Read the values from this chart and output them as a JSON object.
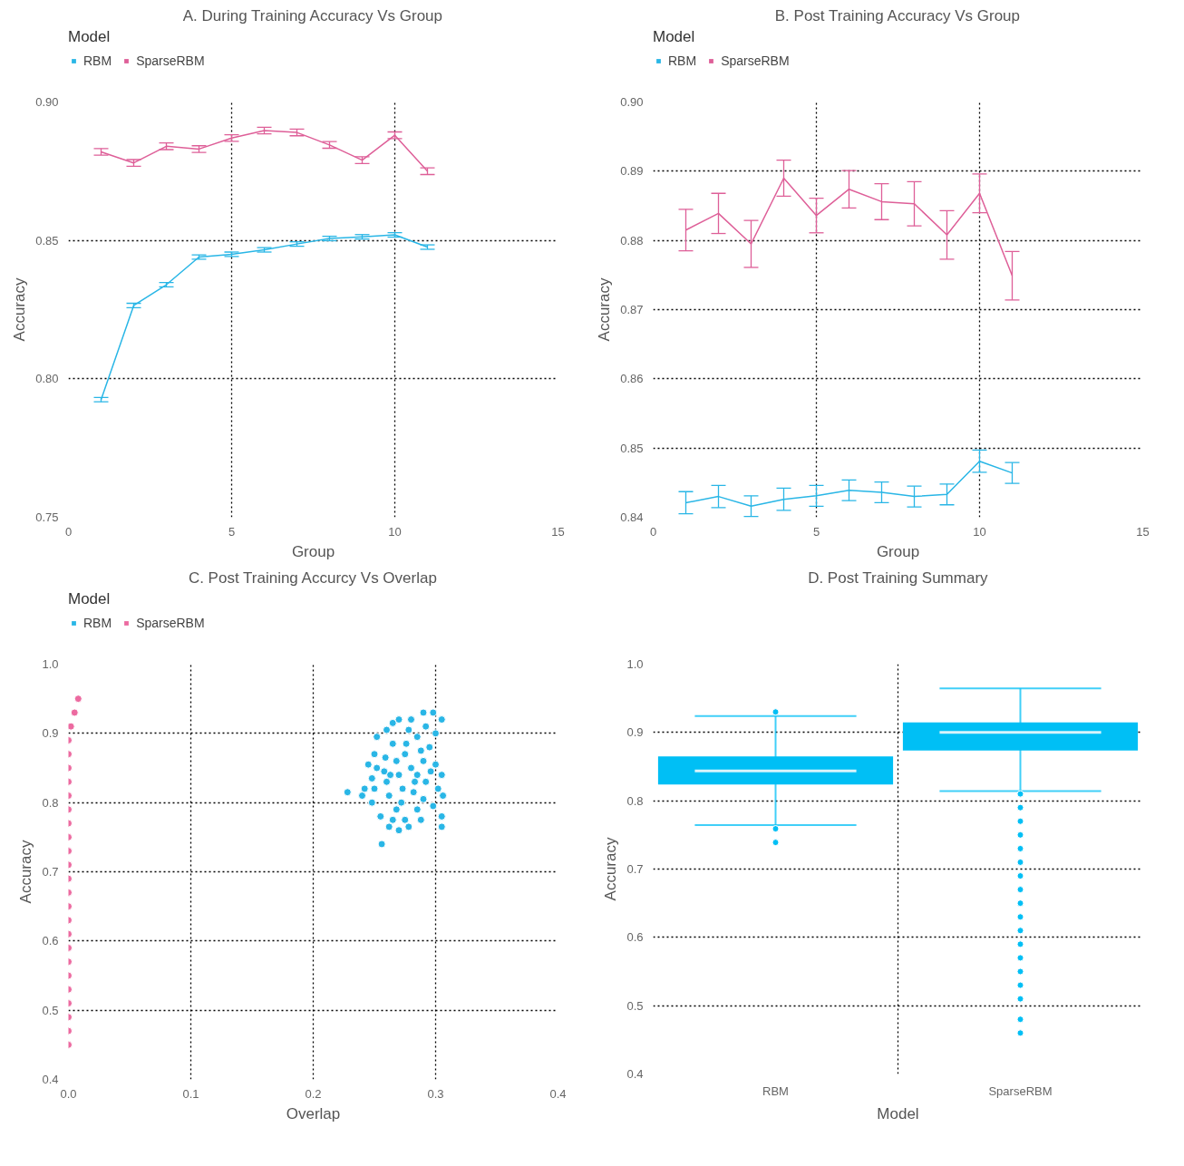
{
  "chart_data": [
    {
      "type": "line",
      "title": "A. During Training Accuracy Vs Group",
      "xlabel": "Group",
      "ylabel": "Accuracy",
      "legend_title": "Model",
      "legend": "top left",
      "grid": true,
      "x": [
        1,
        2,
        3,
        4,
        5,
        6,
        7,
        8,
        9,
        10,
        11
      ],
      "xlim": [
        0,
        15
      ],
      "xticks": [
        0,
        5,
        10,
        15
      ],
      "ylim": [
        0.75,
        0.9
      ],
      "yticks": [
        0.75,
        {
          "value": 0.8,
          "label": "0.80"
        },
        0.85,
        {
          "value": 0.9,
          "label": "0.90"
        }
      ],
      "series": [
        {
          "name": "RBM",
          "color": "#29b6e6",
          "values": [
            0.7925,
            0.8265,
            0.834,
            0.844,
            0.845,
            0.8466,
            0.8487,
            0.8507,
            0.8513,
            0.852,
            0.8476
          ],
          "errors": [
            0.0008,
            0.0008,
            0.0008,
            0.0008,
            0.0008,
            0.0008,
            0.0008,
            0.0008,
            0.0008,
            0.0008,
            0.0008
          ]
        },
        {
          "name": "SparseRBM",
          "color": "#de5f98",
          "values": [
            0.882,
            0.878,
            0.884,
            0.883,
            0.887,
            0.8897,
            0.889,
            0.8845,
            0.879,
            0.888,
            0.875
          ],
          "errors": [
            0.0012,
            0.0012,
            0.0012,
            0.0012,
            0.0012,
            0.0012,
            0.0012,
            0.0012,
            0.0012,
            0.0012,
            0.0012
          ]
        }
      ]
    },
    {
      "type": "line",
      "title": "B. Post Training Accuracy Vs Group",
      "xlabel": "Group",
      "ylabel": "Accuracy",
      "legend_title": "Model",
      "legend": "top left",
      "grid": true,
      "x": [
        1,
        2,
        3,
        4,
        5,
        6,
        7,
        8,
        9,
        10,
        11
      ],
      "xlim": [
        0,
        15
      ],
      "xticks": [
        0,
        5,
        10,
        15
      ],
      "ylim": [
        0.84,
        0.9
      ],
      "yticks": [
        0.84,
        0.85,
        0.86,
        0.87,
        0.88,
        0.89,
        {
          "value": 0.9,
          "label": "0.90"
        }
      ],
      "series": [
        {
          "name": "RBM",
          "color": "#29b6e6",
          "values": [
            0.8421,
            0.843,
            0.8416,
            0.8426,
            0.8431,
            0.8439,
            0.8436,
            0.843,
            0.8433,
            0.8481,
            0.8464
          ],
          "errors": [
            0.0016,
            0.0016,
            0.0015,
            0.0016,
            0.0015,
            0.0015,
            0.0015,
            0.0015,
            0.0015,
            0.0016,
            0.0015
          ]
        },
        {
          "name": "SparseRBM",
          "color": "#de5f98",
          "values": [
            0.8815,
            0.8839,
            0.8795,
            0.889,
            0.8836,
            0.8874,
            0.8856,
            0.8853,
            0.8808,
            0.8868,
            0.8749
          ],
          "errors": [
            0.003,
            0.0029,
            0.0034,
            0.0026,
            0.0025,
            0.0027,
            0.0026,
            0.0032,
            0.0035,
            0.0028,
            0.0035
          ]
        }
      ]
    },
    {
      "type": "scatter",
      "title": "C. Post Training Accurcy Vs Overlap",
      "xlabel": "Overlap",
      "ylabel": "Accuracy",
      "legend_title": "Model",
      "legend": "top left",
      "grid": true,
      "marker": "circle",
      "xlim": [
        0,
        0.4
      ],
      "xticks": [
        {
          "value": 0,
          "label": "0.0"
        },
        0.1,
        0.2,
        0.3,
        0.4
      ],
      "ylim": [
        0.4,
        1.0
      ],
      "yticks": [
        0.4,
        0.5,
        0.6,
        0.7,
        0.8,
        0.9,
        {
          "value": 1,
          "label": "1.0"
        }
      ],
      "series": [
        {
          "name": "RBM",
          "color": "#29b6e6",
          "x": [
            0.228,
            0.256,
            0.305,
            0.306,
            0.305,
            0.245,
            0.25,
            0.252,
            0.26,
            0.265,
            0.27,
            0.28,
            0.29,
            0.298,
            0.305,
            0.3,
            0.295,
            0.3,
            0.305,
            0.302,
            0.29,
            0.285,
            0.275,
            0.265,
            0.255,
            0.248,
            0.242,
            0.24,
            0.25,
            0.26,
            0.27,
            0.28,
            0.29,
            0.275,
            0.265,
            0.285,
            0.278,
            0.268,
            0.258,
            0.248,
            0.262,
            0.272,
            0.282,
            0.292,
            0.296,
            0.288,
            0.276,
            0.259,
            0.252,
            0.268,
            0.278,
            0.288,
            0.298,
            0.262,
            0.27,
            0.283,
            0.273,
            0.263,
            0.292,
            0.285
          ],
          "values": [
            0.815,
            0.74,
            0.765,
            0.81,
            0.78,
            0.855,
            0.87,
            0.895,
            0.905,
            0.915,
            0.92,
            0.92,
            0.93,
            0.93,
            0.92,
            0.9,
            0.88,
            0.855,
            0.84,
            0.82,
            0.805,
            0.79,
            0.775,
            0.775,
            0.78,
            0.8,
            0.82,
            0.81,
            0.82,
            0.83,
            0.84,
            0.85,
            0.86,
            0.87,
            0.885,
            0.895,
            0.905,
            0.86,
            0.845,
            0.835,
            0.81,
            0.8,
            0.815,
            0.83,
            0.845,
            0.875,
            0.885,
            0.865,
            0.85,
            0.79,
            0.765,
            0.775,
            0.795,
            0.765,
            0.76,
            0.83,
            0.82,
            0.84,
            0.91,
            0.84
          ]
        },
        {
          "name": "SparseRBM",
          "color": "#ec6aa0",
          "x": [
            0,
            0,
            0,
            0,
            0,
            0,
            0,
            0,
            0,
            0,
            0,
            0,
            0,
            0,
            0,
            0,
            0,
            0,
            0,
            0,
            0,
            0,
            0,
            0.002,
            0.005,
            0.008
          ],
          "values": [
            0.45,
            0.47,
            0.49,
            0.51,
            0.53,
            0.55,
            0.57,
            0.59,
            0.61,
            0.63,
            0.65,
            0.67,
            0.69,
            0.71,
            0.73,
            0.75,
            0.77,
            0.79,
            0.81,
            0.83,
            0.85,
            0.87,
            0.89,
            0.91,
            0.93,
            0.95
          ]
        }
      ]
    },
    {
      "type": "box",
      "title": "D. Post Training Summary",
      "xlabel": "Model",
      "ylabel": "Accuracy",
      "grid": true,
      "color": "#00bff5",
      "categories": [
        "RBM",
        "SparseRBM"
      ],
      "ylim": [
        0.4,
        1.0
      ],
      "yticks": [
        0.4,
        0.5,
        0.6,
        0.7,
        0.8,
        0.9,
        {
          "value": 1,
          "label": "1.0"
        }
      ],
      "boxes": [
        {
          "low": 0.7645,
          "q1": 0.8237,
          "median": 0.8436,
          "q3": 0.865,
          "high": 0.924,
          "outliers": [
            0.93,
            0.759,
            0.739
          ]
        },
        {
          "low": 0.8142,
          "q1": 0.8735,
          "median": 0.9,
          "q3": 0.9147,
          "high": 0.9645,
          "outliers": [
            0.81,
            0.79,
            0.77,
            0.75,
            0.73,
            0.71,
            0.69,
            0.67,
            0.65,
            0.63,
            0.61,
            0.59,
            0.57,
            0.55,
            0.53,
            0.51,
            0.48,
            0.46
          ]
        }
      ]
    }
  ]
}
